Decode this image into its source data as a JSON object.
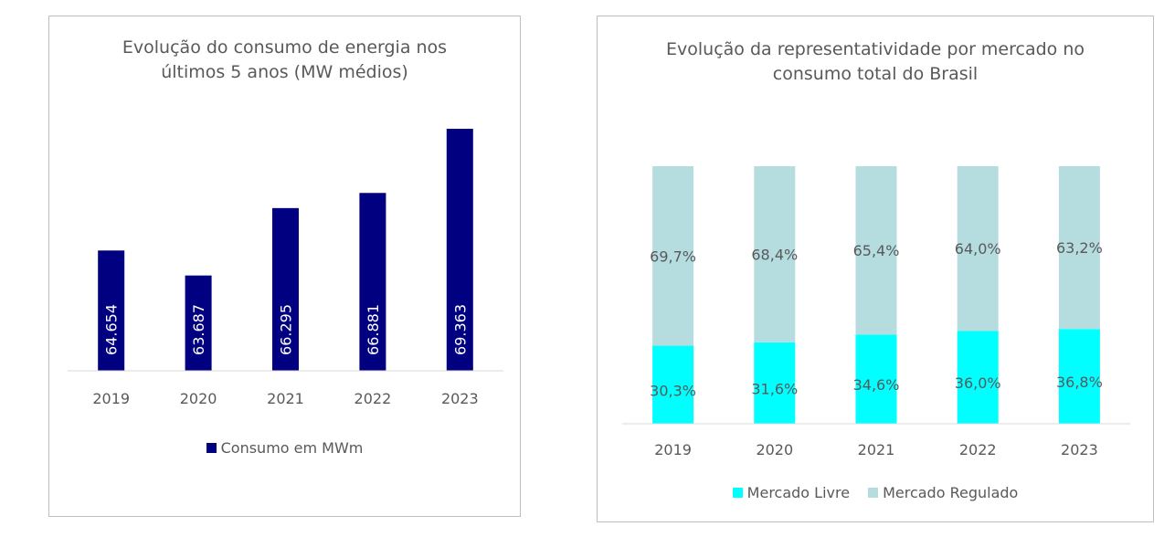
{
  "colors": {
    "consumo": "#000080",
    "mercado_livre": "#00ffff",
    "mercado_regulado": "#b5dde0",
    "axis": "#d9d9d9",
    "text": "#595959",
    "bar_label": "#ffffff"
  },
  "chart_data": [
    {
      "type": "bar",
      "title_lines": [
        "Evolução do consumo de energia nos",
        "últimos 5 anos (MW médios)"
      ],
      "categories": [
        "2019",
        "2020",
        "2021",
        "2022",
        "2023"
      ],
      "series": [
        {
          "name": "Consumo em MWm",
          "values": [
            64654,
            63687,
            66295,
            66881,
            69363
          ],
          "labels": [
            "64.654",
            "63.687",
            "66.295",
            "66.881",
            "69.363"
          ]
        }
      ],
      "ylim": [
        60000,
        70000
      ],
      "grid": false,
      "legend": "bottom"
    },
    {
      "type": "bar",
      "stacked": true,
      "title_lines": [
        "Evolução da representatividade por mercado no",
        "consumo total do Brasil"
      ],
      "categories": [
        "2019",
        "2020",
        "2021",
        "2022",
        "2023"
      ],
      "series": [
        {
          "name": "Mercado Livre",
          "values": [
            30.3,
            31.6,
            34.6,
            36.0,
            36.8
          ],
          "labels": [
            "30,3%",
            "31,6%",
            "34,6%",
            "36,0%",
            "36,8%"
          ]
        },
        {
          "name": "Mercado Regulado",
          "values": [
            69.7,
            68.4,
            65.4,
            64.0,
            63.2
          ],
          "labels": [
            "69,7%",
            "68,4%",
            "65,4%",
            "64,0%",
            "63,2%"
          ]
        }
      ],
      "ylim": [
        0,
        100
      ],
      "grid": false,
      "legend": "bottom"
    }
  ]
}
